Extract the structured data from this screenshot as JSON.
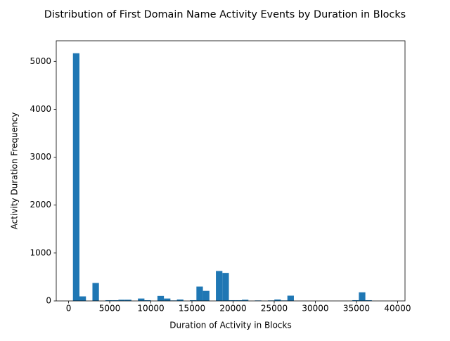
{
  "chart_data": {
    "type": "bar",
    "title": "Distribution of First Domain Name Activity Events by Duration in Blocks",
    "xlabel": "Duration of Activity in Blocks",
    "ylabel": "Activity Duration Frequency",
    "xlim": [
      -1500,
      40900
    ],
    "ylim": [
      0,
      5430
    ],
    "bin_width": 790,
    "xticks": [
      0,
      5000,
      10000,
      15000,
      20000,
      25000,
      30000,
      35000,
      40000
    ],
    "xtick_labels": [
      "0",
      "5000",
      "10000",
      "15000",
      "20000",
      "25000",
      "30000",
      "35000",
      "40000"
    ],
    "yticks": [
      0,
      1000,
      2000,
      3000,
      4000,
      5000
    ],
    "ytick_labels": [
      "0",
      "1000",
      "2000",
      "3000",
      "4000",
      "5000"
    ],
    "grid": false,
    "bin_starts": [
      530,
      1320,
      2900,
      4480,
      5270,
      6060,
      6850,
      8430,
      9220,
      10800,
      11590,
      12380,
      13170,
      14750,
      15540,
      16330,
      17910,
      18700,
      19490,
      20280,
      21070,
      22650,
      24230,
      25020,
      25810,
      26600,
      34500,
      35290,
      36080
    ],
    "values": [
      5170,
      95,
      375,
      15,
      15,
      25,
      25,
      50,
      15,
      105,
      50,
      10,
      30,
      15,
      300,
      210,
      625,
      585,
      15,
      15,
      25,
      10,
      10,
      30,
      10,
      110,
      15,
      180,
      15
    ]
  }
}
